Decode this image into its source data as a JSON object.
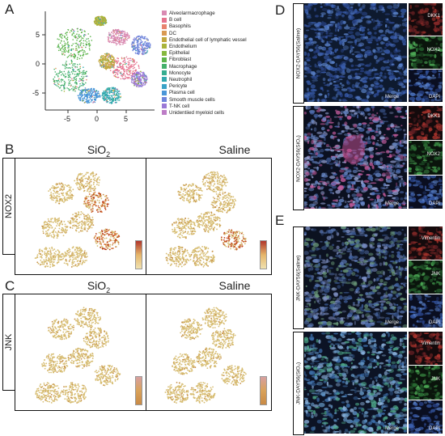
{
  "panels": {
    "A": "A",
    "B": "B",
    "C": "C",
    "D": "D",
    "E": "E"
  },
  "tsne": {
    "yticks": [
      "5",
      "0",
      "-5"
    ],
    "xticks": [
      "-5",
      "0",
      "5"
    ],
    "legend": [
      {
        "label": "Alveolarmacrophage",
        "color": "#d98ab2"
      },
      {
        "label": "B cell",
        "color": "#e6738f"
      },
      {
        "label": "Basophils",
        "color": "#e8826e"
      },
      {
        "label": "DC",
        "color": "#d99a53"
      },
      {
        "label": "Endothelial cell of lymphatic vessel",
        "color": "#c2a83e"
      },
      {
        "label": "Endothelium",
        "color": "#a9b43a"
      },
      {
        "label": "Epithelial",
        "color": "#86b83e"
      },
      {
        "label": "Fibroblast",
        "color": "#5db44b"
      },
      {
        "label": "Macrophage",
        "color": "#44b06a"
      },
      {
        "label": "Monocyte",
        "color": "#35ad90"
      },
      {
        "label": "Neutrophil",
        "color": "#33a9ae"
      },
      {
        "label": "Pericyte",
        "color": "#3aa3c7"
      },
      {
        "label": "Plasma cell",
        "color": "#4a96d8"
      },
      {
        "label": "Smooth muscle cells",
        "color": "#6f84dc"
      },
      {
        "label": "T-NK cell",
        "color": "#9a78d6"
      },
      {
        "label": "Unidentiied myeloid cells",
        "color": "#bd7cc6"
      }
    ]
  },
  "row_b": {
    "label": "NOX2",
    "col1": "SiO",
    "col1_sub": "2",
    "col2": "Saline"
  },
  "row_c": {
    "label": "JNK",
    "col1": "SiO",
    "col1_sub": "2",
    "col2": "Saline"
  },
  "panel_d": {
    "row1_label": "NOX2-DAY56(Saline)",
    "row2_label": "NOX2-DAY56(SiO₂)",
    "merge": "Merge",
    "ch1": "DKK1",
    "ch2": "NOX2",
    "ch3": "DAPI"
  },
  "panel_e": {
    "row1_label": "JNK-DAY56(Saline)",
    "row2_label": "JNK-DAY56(SiO₂)",
    "merge": "Merge",
    "ch1": "Vimentin",
    "ch2": "JNK",
    "ch3": "DAPI"
  },
  "colors": {
    "umap_base": "#d9c27a",
    "umap_high": "#b83a12",
    "micro_bg": "#0d1424",
    "micro_tissue": "#6a8fc0",
    "red_channel": "#b5372f",
    "green_channel": "#3f9c48",
    "blue_channel": "#2f4fa8"
  }
}
